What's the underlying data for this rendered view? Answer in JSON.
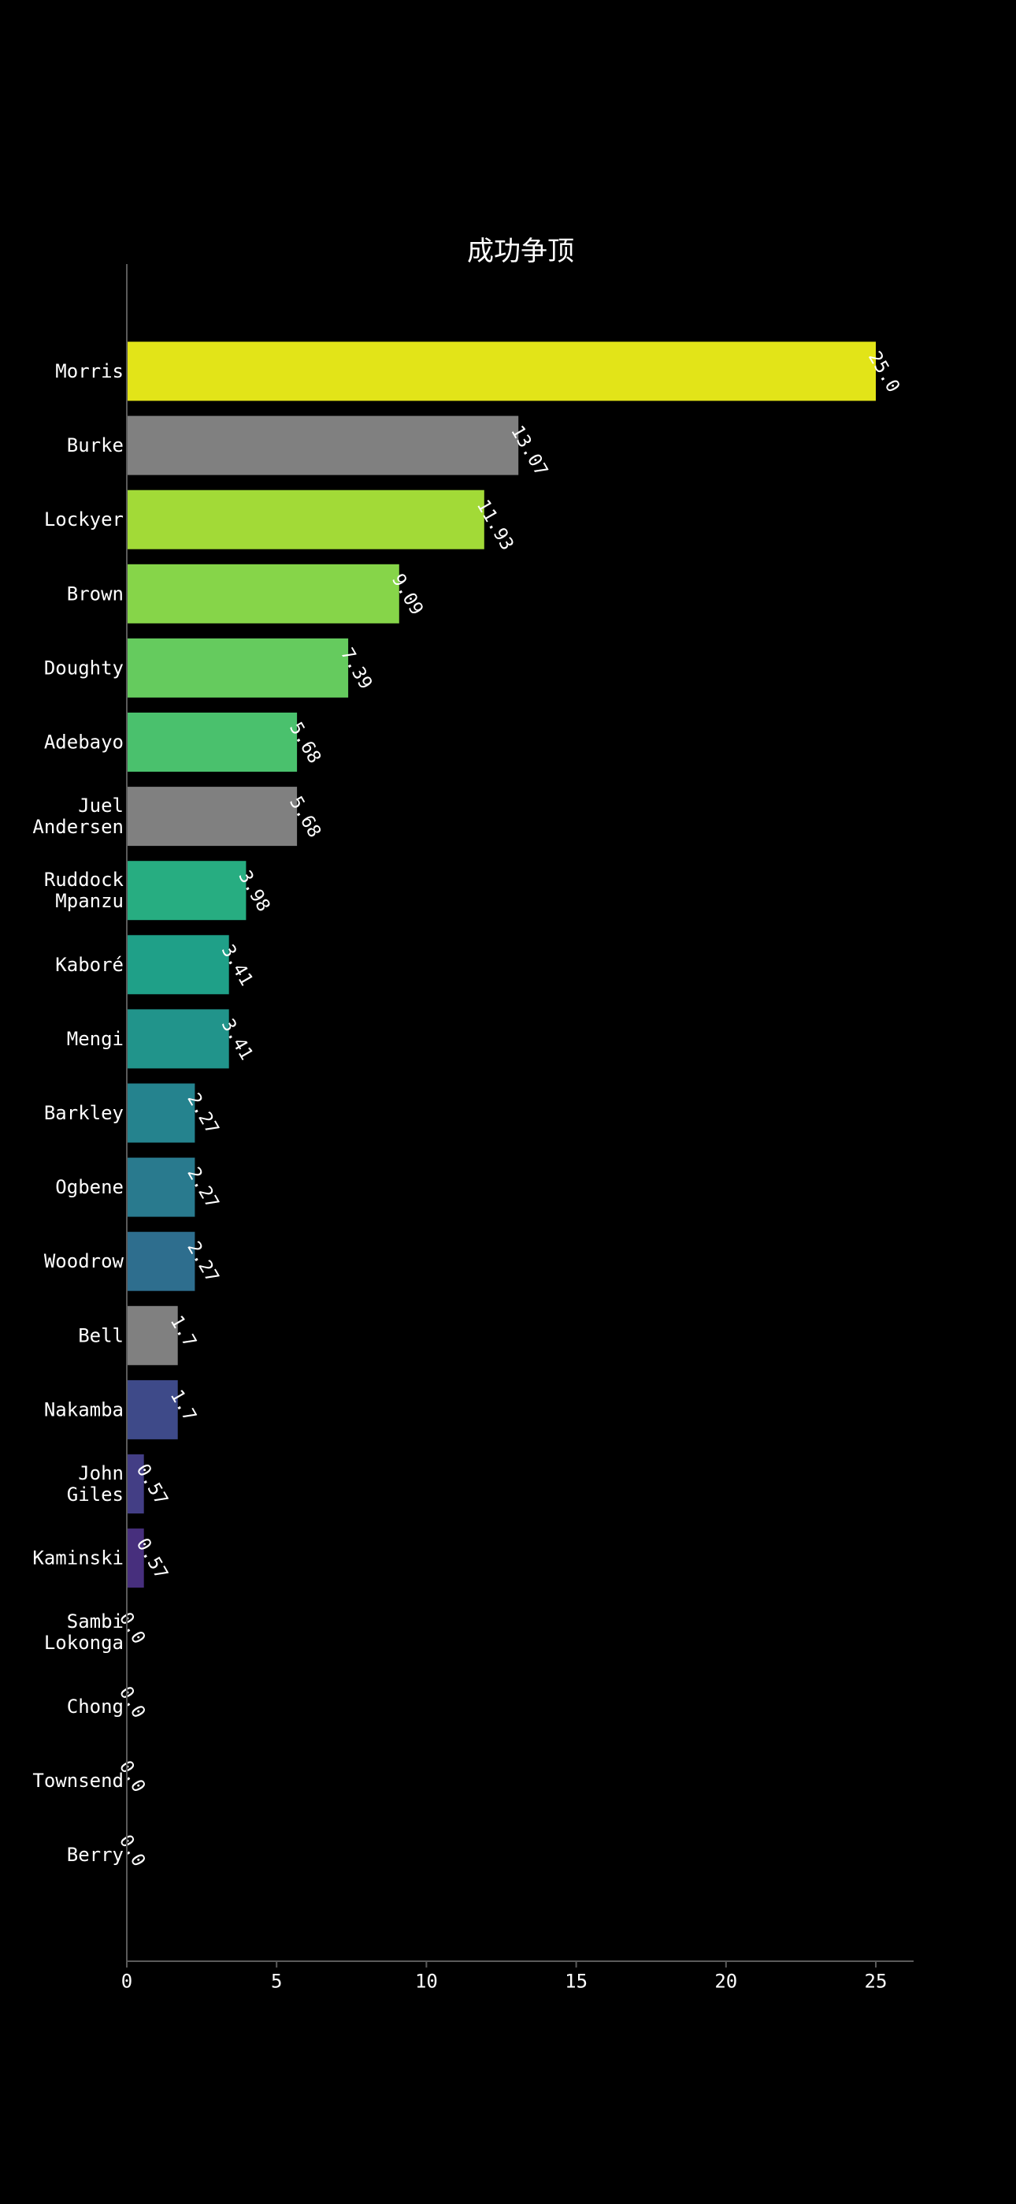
{
  "chart_data": {
    "type": "bar",
    "orientation": "horizontal",
    "title": "成功争顶",
    "xlabel": "",
    "ylabel": "",
    "xlim": [
      0,
      26.2
    ],
    "x_ticks": [
      0,
      5,
      10,
      15,
      20,
      25
    ],
    "x_tick_labels": [
      "0",
      "5",
      "10",
      "15",
      "20",
      "25"
    ],
    "grid": false,
    "categories": [
      [
        "Morris"
      ],
      [
        "Burke"
      ],
      [
        "Lockyer"
      ],
      [
        "Brown"
      ],
      [
        "Doughty"
      ],
      [
        "Adebayo"
      ],
      [
        "Juel",
        "Andersen"
      ],
      [
        "Ruddock",
        "Mpanzu"
      ],
      [
        "Kaboré"
      ],
      [
        "Mengi"
      ],
      [
        "Barkley"
      ],
      [
        "Ogbene"
      ],
      [
        "Woodrow"
      ],
      [
        "Bell"
      ],
      [
        "Nakamba"
      ],
      [
        "John",
        "Giles"
      ],
      [
        "Kaminski"
      ],
      [
        "Sambi",
        "Lokonga"
      ],
      [
        "Chong"
      ],
      [
        "Townsend"
      ],
      [
        "Berry"
      ]
    ],
    "values": [
      25.0,
      13.07,
      11.93,
      9.09,
      7.39,
      5.68,
      5.68,
      3.98,
      3.41,
      3.41,
      2.27,
      2.27,
      2.27,
      1.7,
      1.7,
      0.57,
      0.57,
      0.0,
      0.0,
      0.0,
      0.0
    ],
    "value_labels": [
      "25.0",
      "13.07",
      "11.93",
      "9.09",
      "7.39",
      "5.68",
      "5.68",
      "3.98",
      "3.41",
      "3.41",
      "2.27",
      "2.27",
      "2.27",
      "1.7",
      "1.7",
      "0.57",
      "0.57",
      "0.0",
      "0.0",
      "0.0",
      "0.0"
    ],
    "colors": [
      "#e2e418",
      "#808080",
      "#a2da37",
      "#86d549",
      "#65cb5e",
      "#4ac16d",
      "#808080",
      "#27ad81",
      "#1fa088",
      "#21948b",
      "#25838e",
      "#297a8e",
      "#2e6e8e",
      "#808080",
      "#3e4a89",
      "#433e85",
      "#472f7d",
      "#471f70",
      "#481467",
      "#48186a",
      "#440154"
    ]
  }
}
